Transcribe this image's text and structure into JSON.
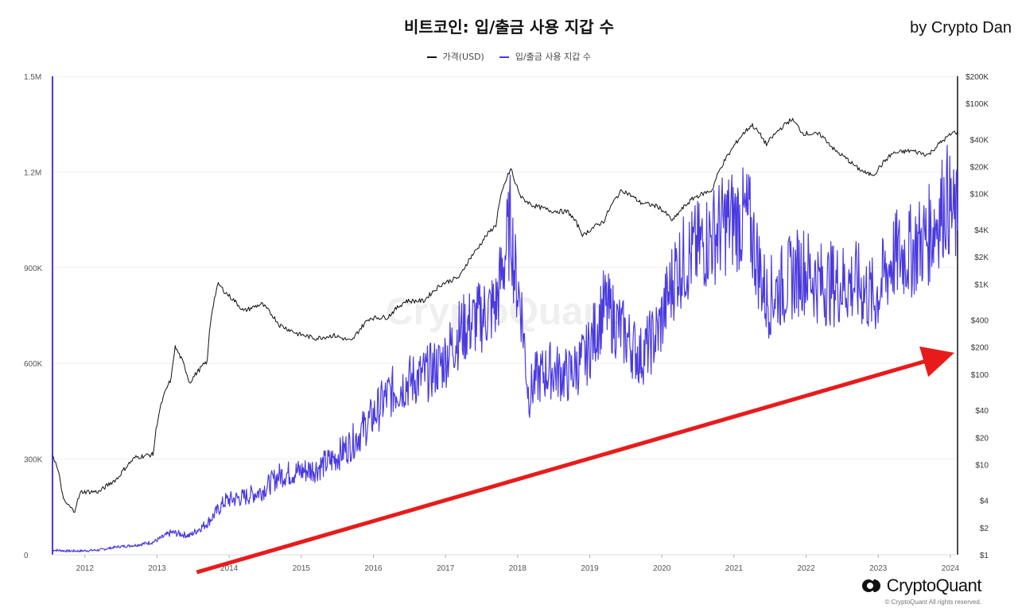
{
  "header": {
    "title": "비트코인: 입/출금 사용 지갑 수",
    "byline": "by Crypto Dan"
  },
  "branding": {
    "logo_text": "CryptoQuant",
    "copyright": "© CryptoQuant All rights reserved.",
    "watermark": "CryptoQuant"
  },
  "chart_data": {
    "type": "line",
    "title": "비트코인: 입/출금 사용 지갑 수",
    "x_ticks": [
      "2012",
      "2013",
      "2014",
      "2015",
      "2016",
      "2017",
      "2018",
      "2019",
      "2020",
      "2021",
      "2022",
      "2023",
      "2024"
    ],
    "y_left_ticks": [
      "0",
      "300K",
      "600K",
      "900K",
      "1.2M",
      "1.5M"
    ],
    "y_left_range": [
      0,
      1500000
    ],
    "y_right_ticks": [
      "$1",
      "$2",
      "$4",
      "$10",
      "$20",
      "$40",
      "$100",
      "$200",
      "$400",
      "$1K",
      "$2K",
      "$4K",
      "$10K",
      "$20K",
      "$40K",
      "$100K",
      "$200K"
    ],
    "y_right_values": [
      1,
      2,
      4,
      10,
      20,
      40,
      100,
      200,
      400,
      1000,
      2000,
      4000,
      10000,
      20000,
      40000,
      100000,
      200000
    ],
    "y_right_scale": "log",
    "y_right_range": [
      1,
      200000
    ],
    "grid": true,
    "legend_position": "top-center",
    "series": [
      {
        "name": "가격(USD)",
        "axis": "right",
        "color": "#111111",
        "x": [
          2011.6,
          2011.75,
          2011.9,
          2012.0,
          2012.25,
          2012.5,
          2012.75,
          2013.0,
          2013.25,
          2013.3,
          2013.5,
          2013.75,
          2013.9,
          2014.0,
          2014.25,
          2014.5,
          2014.75,
          2015.0,
          2015.25,
          2015.5,
          2015.75,
          2016.0,
          2016.25,
          2016.5,
          2016.75,
          2017.0,
          2017.25,
          2017.5,
          2017.75,
          2017.96,
          2018.0,
          2018.1,
          2018.25,
          2018.5,
          2018.75,
          2018.96,
          2019.0,
          2019.25,
          2019.5,
          2019.75,
          2020.0,
          2020.2,
          2020.5,
          2020.75,
          2021.0,
          2021.3,
          2021.5,
          2021.85,
          2022.0,
          2022.25,
          2022.45,
          2022.75,
          2022.9,
          2023.0,
          2023.25,
          2023.5,
          2023.75,
          2024.0,
          2024.1
        ],
        "values": [
          13,
          4,
          3,
          5,
          5,
          7,
          12,
          13,
          90,
          200,
          80,
          140,
          1000,
          800,
          500,
          600,
          350,
          280,
          250,
          270,
          230,
          420,
          430,
          650,
          650,
          1000,
          1200,
          2500,
          4500,
          19000,
          14000,
          9000,
          7500,
          6500,
          6300,
          3400,
          3700,
          5000,
          11000,
          8000,
          7200,
          5000,
          9100,
          11000,
          29000,
          58000,
          35000,
          67000,
          47000,
          45000,
          30000,
          19500,
          16500,
          16600,
          28000,
          30000,
          27000,
          42000,
          48000
        ]
      },
      {
        "name": "입/출금 사용 지갑 수",
        "axis": "left",
        "color": "#4a3adf",
        "x": [
          2011.6,
          2011.8,
          2012.0,
          2012.25,
          2012.5,
          2012.75,
          2013.0,
          2013.25,
          2013.5,
          2013.75,
          2014.0,
          2014.25,
          2014.5,
          2014.75,
          2015.0,
          2015.25,
          2015.5,
          2015.75,
          2016.0,
          2016.25,
          2016.5,
          2016.75,
          2017.0,
          2017.25,
          2017.5,
          2017.75,
          2017.96,
          2018.0,
          2018.1,
          2018.2,
          2018.3,
          2018.5,
          2018.75,
          2019.0,
          2019.25,
          2019.5,
          2019.75,
          2020.0,
          2020.25,
          2020.5,
          2020.75,
          2021.0,
          2021.25,
          2021.5,
          2021.75,
          2022.0,
          2022.25,
          2022.5,
          2022.75,
          2023.0,
          2023.25,
          2023.5,
          2023.75,
          2024.0,
          2024.1
        ],
        "values": [
          15000,
          12000,
          12000,
          15000,
          25000,
          30000,
          40000,
          70000,
          60000,
          100000,
          170000,
          180000,
          200000,
          250000,
          260000,
          270000,
          300000,
          350000,
          420000,
          500000,
          540000,
          560000,
          600000,
          700000,
          740000,
          780000,
          1050000,
          900000,
          780000,
          500000,
          550000,
          580000,
          560000,
          620000,
          780000,
          700000,
          620000,
          700000,
          900000,
          950000,
          1000000,
          1050000,
          1050000,
          800000,
          850000,
          900000,
          850000,
          850000,
          850000,
          800000,
          930000,
          950000,
          1000000,
          1120000,
          1050000
        ]
      }
    ],
    "annotations": [
      {
        "type": "arrow",
        "color": "#e81b1b",
        "from": {
          "x": 2013.6,
          "y": 1
        },
        "to": {
          "x": 2024.0,
          "y": 200
        },
        "axis": "right"
      }
    ]
  }
}
